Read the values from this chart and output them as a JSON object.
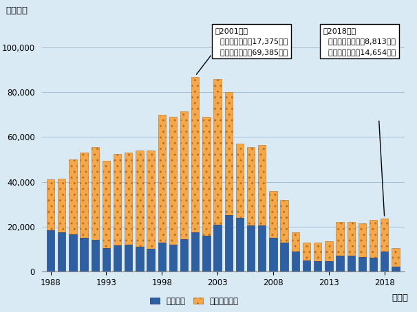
{
  "years": [
    1988,
    1989,
    1990,
    1991,
    1992,
    1993,
    1994,
    1995,
    1996,
    1997,
    1998,
    1999,
    2000,
    2001,
    2002,
    2003,
    2004,
    2005,
    2006,
    2007,
    2008,
    2009,
    2010,
    2011,
    2012,
    2013,
    2014,
    2015,
    2016,
    2017,
    2018,
    2019
  ],
  "live_eel": [
    18500,
    17500,
    16500,
    15000,
    14000,
    10500,
    11500,
    12000,
    11000,
    10000,
    13000,
    12000,
    14356,
    17375,
    16000,
    21000,
    25000,
    24000,
    20500,
    20500,
    15000,
    13000,
    9000,
    5000,
    4500,
    4500,
    7000,
    7000,
    6500,
    6000,
    8813,
    2000
  ],
  "eel_products": [
    22500,
    24000,
    33500,
    38000,
    41500,
    39000,
    41000,
    41000,
    43000,
    44000,
    57000,
    57000,
    57000,
    69385,
    53000,
    65000,
    55000,
    33000,
    35000,
    36000,
    21000,
    19000,
    8500,
    8000,
    8500,
    9000,
    15000,
    15000,
    15000,
    17000,
    14654,
    8500
  ],
  "bg_color": "#d9eaf5",
  "bar_color_live": "#2e5fa3",
  "bar_color_products_face": "#f5a84a",
  "bar_color_products_edge": "#b87020",
  "ylabel": "（トン）",
  "xlabel": "（年）",
  "yticks": [
    0,
    20000,
    40000,
    60000,
    80000,
    100000
  ],
  "xticks": [
    1988,
    1993,
    1998,
    2003,
    2008,
    2013,
    2018
  ],
  "ylim": [
    0,
    110000
  ],
  "legend_live": "活ウナギ",
  "legend_products": "ウナギ調製品",
  "annotation_2001_title": "（2001年）",
  "annotation_2001_line1": "活ウナギ　　：17,375トン",
  "annotation_2001_line2": "ウナギ調製品：69,385トン",
  "annotation_2018_title": "（2018年）",
  "annotation_2018_line1": "活ウナギ　　：　8,813トン",
  "annotation_2018_line2": "ウナギ調製品：14,654トン"
}
